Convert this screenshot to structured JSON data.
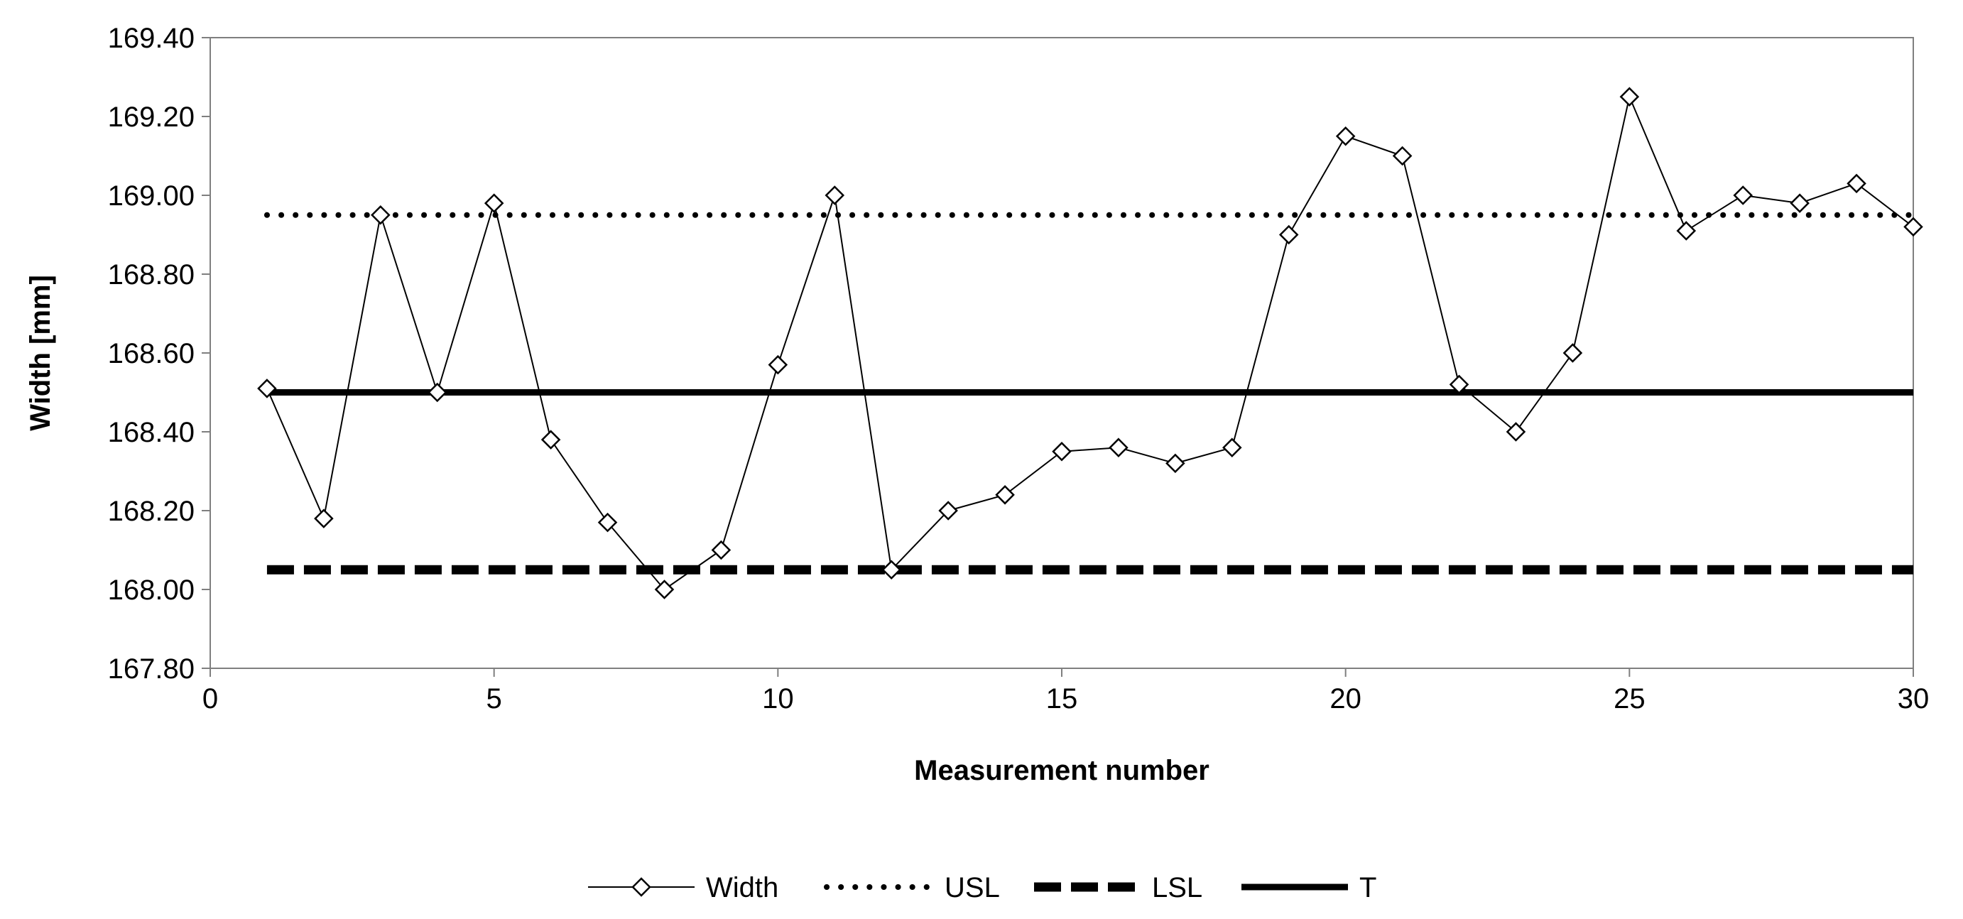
{
  "chart_data": {
    "type": "line",
    "title": "",
    "xlabel": "Measurement number",
    "ylabel": "Width [mm]",
    "xlim": [
      0,
      30
    ],
    "ylim": [
      167.8,
      169.4
    ],
    "x_ticks": [
      0,
      5,
      10,
      15,
      20,
      25,
      30
    ],
    "x_tick_labels": [
      "0",
      "5",
      "10",
      "15",
      "20",
      "25",
      "30"
    ],
    "y_ticks": [
      167.8,
      168.0,
      168.2,
      168.4,
      168.6,
      168.8,
      169.0,
      169.2,
      169.4
    ],
    "y_tick_labels": [
      "167.80",
      "168.00",
      "168.20",
      "168.40",
      "168.60",
      "168.80",
      "169.00",
      "169.20",
      "169.40"
    ],
    "grid": false,
    "legend_position": "bottom",
    "series": [
      {
        "name": "Width",
        "style": "solid-thin-diamond",
        "color": "#000000",
        "x": [
          1,
          2,
          3,
          4,
          5,
          6,
          7,
          8,
          9,
          10,
          11,
          12,
          13,
          14,
          15,
          16,
          17,
          18,
          19,
          20,
          21,
          22,
          23,
          24,
          25,
          26,
          27,
          28,
          29,
          30
        ],
        "values": [
          168.51,
          168.18,
          168.95,
          168.5,
          168.98,
          168.38,
          168.17,
          168.0,
          168.1,
          168.57,
          169.0,
          168.05,
          168.2,
          168.24,
          168.35,
          168.36,
          168.32,
          168.36,
          168.9,
          169.15,
          169.1,
          168.52,
          168.4,
          168.6,
          169.25,
          168.91,
          169.0,
          168.98,
          169.03,
          168.92
        ]
      },
      {
        "name": "USL",
        "style": "dotted",
        "color": "#000000",
        "x": [
          1,
          30
        ],
        "values": [
          168.95,
          168.95
        ]
      },
      {
        "name": "LSL",
        "style": "dashed",
        "color": "#000000",
        "x": [
          1,
          30
        ],
        "values": [
          168.05,
          168.05
        ]
      },
      {
        "name": "T",
        "style": "solid-thick",
        "color": "#000000",
        "x": [
          1,
          30
        ],
        "values": [
          168.5,
          168.5
        ]
      }
    ]
  }
}
